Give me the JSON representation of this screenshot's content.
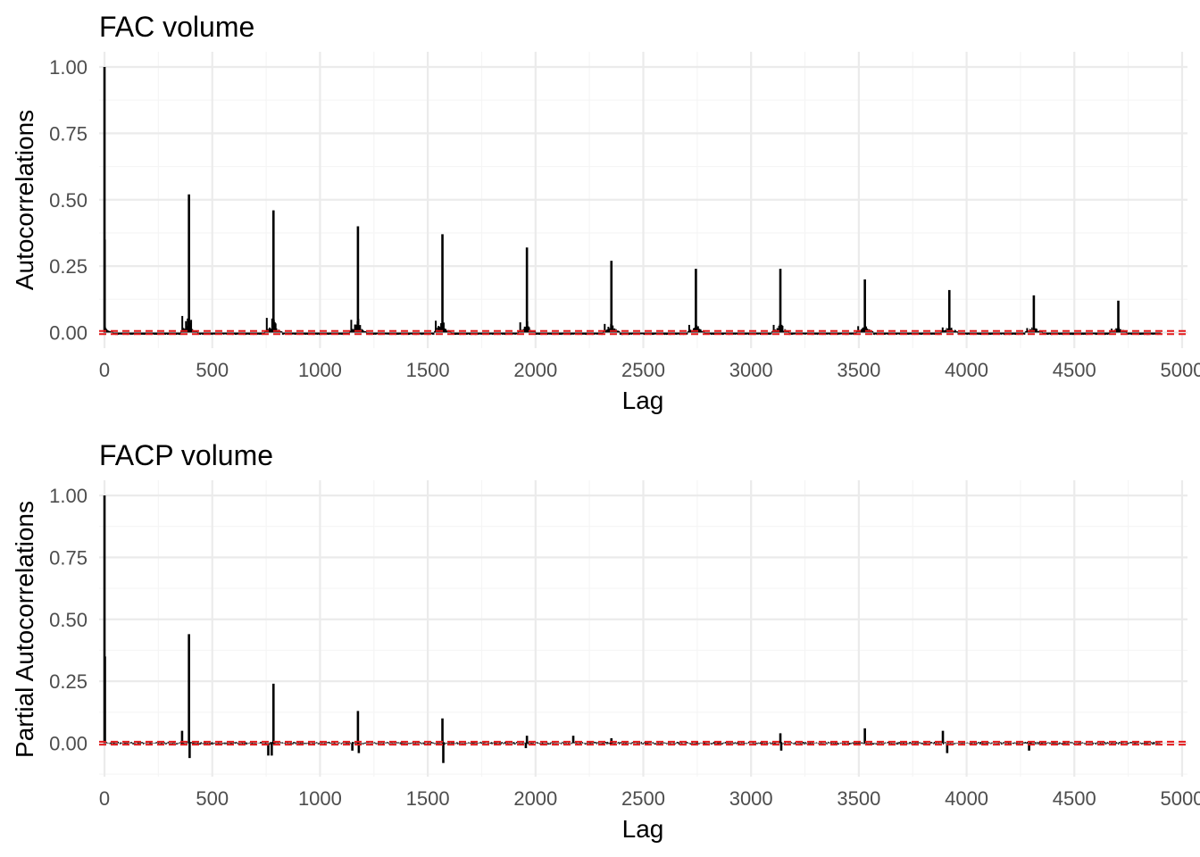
{
  "colors": {
    "bars": "#000000",
    "confidence_band": "#e41a1c",
    "grid_major": "#ebebeb",
    "grid_minor": "#f5f5f5",
    "tick_text": "#4d4d4d"
  },
  "chart_data": [
    {
      "type": "bar",
      "title": "FAC volume",
      "xlabel": "Lag",
      "ylabel": "Autocorrelations",
      "xlim": [
        -25,
        5025
      ],
      "ylim": [
        -0.012,
        1.0
      ],
      "x_ticks": [
        0,
        500,
        1000,
        1500,
        2000,
        2500,
        3000,
        3500,
        4000,
        4500,
        5000
      ],
      "x_tick_labels": [
        "0",
        "500",
        "1000",
        "1500",
        "2000",
        "2500",
        "3000",
        "3500",
        "4000",
        "4500",
        "5000"
      ],
      "y_ticks": [
        0,
        0.25,
        0.5,
        0.75,
        1.0
      ],
      "y_tick_labels": [
        "0.00",
        "0.25",
        "0.50",
        "0.75",
        "1.00"
      ],
      "confidence_bounds": [
        -0.006,
        0.006
      ],
      "grid": true,
      "seasonal_period": 392,
      "peaks": [
        {
          "lag": 0,
          "value": 1.0
        },
        {
          "lag": 392,
          "value": 0.52
        },
        {
          "lag": 784,
          "value": 0.46
        },
        {
          "lag": 1176,
          "value": 0.4
        },
        {
          "lag": 1568,
          "value": 0.37
        },
        {
          "lag": 1960,
          "value": 0.32
        },
        {
          "lag": 2352,
          "value": 0.27
        },
        {
          "lag": 2744,
          "value": 0.24
        },
        {
          "lag": 3136,
          "value": 0.24
        },
        {
          "lag": 3528,
          "value": 0.2
        },
        {
          "lag": 3920,
          "value": 0.16
        },
        {
          "lag": 4312,
          "value": 0.14
        },
        {
          "lag": 4704,
          "value": 0.12
        }
      ]
    },
    {
      "type": "bar",
      "title": "FACP volume",
      "xlabel": "Lag",
      "ylabel": "Partial Autocorrelations",
      "xlim": [
        -25,
        5025
      ],
      "ylim": [
        -0.1,
        1.0
      ],
      "x_ticks": [
        0,
        500,
        1000,
        1500,
        2000,
        2500,
        3000,
        3500,
        4000,
        4500,
        5000
      ],
      "x_tick_labels": [
        "0",
        "500",
        "1000",
        "1500",
        "2000",
        "2500",
        "3000",
        "3500",
        "4000",
        "4500",
        "5000"
      ],
      "y_ticks": [
        0,
        0.25,
        0.5,
        0.75,
        1.0
      ],
      "y_tick_labels": [
        "0.00",
        "0.25",
        "0.50",
        "0.75",
        "1.00"
      ],
      "confidence_bounds": [
        -0.006,
        0.006
      ],
      "grid": true,
      "peaks": [
        {
          "lag": 0,
          "value": 1.0
        },
        {
          "lag": 2,
          "value": 0.35
        },
        {
          "lag": 360,
          "value": 0.05
        },
        {
          "lag": 392,
          "value": 0.44
        },
        {
          "lag": 395,
          "value": -0.06
        },
        {
          "lag": 760,
          "value": -0.05
        },
        {
          "lag": 776,
          "value": -0.05
        },
        {
          "lag": 784,
          "value": 0.24
        },
        {
          "lag": 1150,
          "value": -0.03
        },
        {
          "lag": 1176,
          "value": 0.13
        },
        {
          "lag": 1180,
          "value": -0.04
        },
        {
          "lag": 1568,
          "value": 0.1
        },
        {
          "lag": 1572,
          "value": -0.08
        },
        {
          "lag": 1960,
          "value": 0.03
        },
        {
          "lag": 1955,
          "value": -0.02
        },
        {
          "lag": 2175,
          "value": 0.03
        },
        {
          "lag": 2352,
          "value": 0.02
        },
        {
          "lag": 3136,
          "value": 0.04
        },
        {
          "lag": 3140,
          "value": -0.03
        },
        {
          "lag": 3528,
          "value": 0.06
        },
        {
          "lag": 3890,
          "value": 0.05
        },
        {
          "lag": 3910,
          "value": -0.04
        },
        {
          "lag": 4290,
          "value": -0.03
        }
      ]
    }
  ]
}
